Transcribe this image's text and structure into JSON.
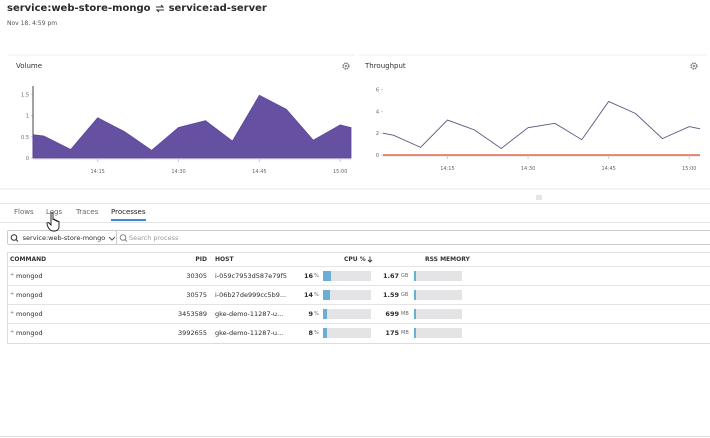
{
  "header": {
    "service_from": "service:web-store-mongo",
    "service_to": "service:ad-server",
    "timestamp": "Nov 18, 4:59 pm"
  },
  "charts": [
    {
      "type": "area",
      "title": "Volume",
      "color": "#5e479d",
      "x": [
        "14:03",
        "14:05",
        "14:10",
        "14:15",
        "14:20",
        "14:25",
        "14:30",
        "14:35",
        "14:40",
        "14:45",
        "14:50",
        "14:55",
        "15:00",
        "15:02"
      ],
      "values": [
        0.55,
        0.52,
        0.2,
        0.95,
        0.62,
        0.18,
        0.72,
        0.88,
        0.4,
        1.48,
        1.15,
        0.42,
        0.78,
        0.72
      ],
      "xlim": [
        "14:03",
        "15:02"
      ],
      "xticks": [
        "14:15",
        "14:30",
        "14:45",
        "15:00"
      ],
      "ylim": [
        0,
        1.7
      ],
      "yticks": [
        0,
        0.5,
        1,
        1.5
      ]
    },
    {
      "type": "line",
      "title": "Throughput",
      "x": [
        "14:03",
        "14:05",
        "14:10",
        "14:15",
        "14:20",
        "14:25",
        "14:30",
        "14:35",
        "14:40",
        "14:45",
        "14:50",
        "14:55",
        "15:00",
        "15:02"
      ],
      "series": [
        {
          "color": "#55597f",
          "values": [
            2,
            1.8,
            0.7,
            3.2,
            2.3,
            0.6,
            2.5,
            2.9,
            1.4,
            4.9,
            3.8,
            1.5,
            2.6,
            2.4
          ]
        },
        {
          "color": "#d9552d",
          "values": [
            0,
            0,
            0,
            0,
            0,
            0,
            0,
            0,
            0,
            0,
            0,
            0,
            0,
            0
          ]
        }
      ],
      "xlim": [
        "14:03",
        "15:02"
      ],
      "xticks": [
        "14:15",
        "14:30",
        "14:45",
        "15:00"
      ],
      "ylim": [
        0,
        6.5
      ],
      "yticks": [
        0,
        2,
        4,
        6
      ]
    }
  ],
  "tabs": [
    "Flows",
    "Logs",
    "Traces",
    "Processes"
  ],
  "active_tab": "Processes",
  "filter": {
    "service": "service:web-store-mongo",
    "search_placeholder": "Search process"
  },
  "table": {
    "columns": [
      "COMMAND",
      "PID",
      "HOST",
      "CPU %",
      "RSS MEMORY"
    ],
    "rows": [
      {
        "command": "mongod",
        "pid": "30305",
        "host": "i-059c7953d587e79f5",
        "cpu": 16,
        "cpu_unit": "%",
        "memory": 1.67,
        "memory_unit": "GB"
      },
      {
        "command": "mongod",
        "pid": "30575",
        "host": "i-06b27de999cc5b9...",
        "cpu": 14,
        "cpu_unit": "%",
        "memory": 1.59,
        "memory_unit": "GB"
      },
      {
        "command": "mongod",
        "pid": "3453589",
        "host": "gke-demo-11287-u...",
        "cpu": 9,
        "cpu_unit": "%",
        "memory": 699,
        "memory_unit": "MB"
      },
      {
        "command": "mongod",
        "pid": "3992655",
        "host": "gke-demo-11287-u...",
        "cpu": 8,
        "cpu_unit": "%",
        "memory": 175,
        "memory_unit": "MB"
      }
    ]
  }
}
